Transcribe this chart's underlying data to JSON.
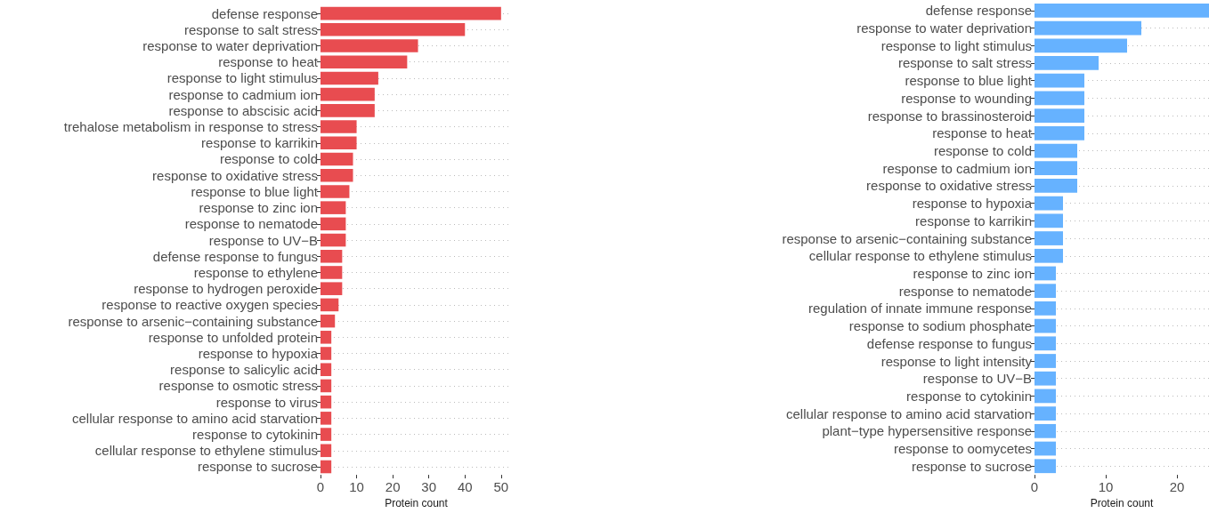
{
  "chart_data": [
    {
      "type": "bar",
      "orientation": "horizontal",
      "xlabel": "Protein count",
      "grid": "y",
      "color": "#e84c50",
      "categories": [
        "defense response",
        "response to salt stress",
        "response to water deprivation",
        "response to heat",
        "response to light stimulus",
        "response to cadmium ion",
        "response to abscisic acid",
        "trehalose metabolism in response to stress",
        "response to karrikin",
        "response to cold",
        "response to oxidative stress",
        "response to blue light",
        "response to zinc ion",
        "response to nematode",
        "response to UV−B",
        "defense response to fungus",
        "response to ethylene",
        "response to hydrogen peroxide",
        "response to reactive oxygen species",
        "response to arsenic−containing substance",
        "response to unfolded protein",
        "response to hypoxia",
        "response to salicylic acid",
        "response to osmotic stress",
        "response to virus",
        "cellular response to amino acid starvation",
        "response to cytokinin",
        "cellular response to ethylene stimulus",
        "response to sucrose"
      ],
      "values": [
        50,
        40,
        27,
        24,
        16,
        15,
        15,
        10,
        10,
        9,
        9,
        8,
        7,
        7,
        7,
        6,
        6,
        6,
        5,
        4,
        3,
        3,
        3,
        3,
        3,
        3,
        3,
        3,
        3
      ],
      "xlim": [
        0,
        53
      ],
      "xticks": [
        0,
        10,
        20,
        30,
        40,
        50
      ]
    },
    {
      "type": "bar",
      "orientation": "horizontal",
      "xlabel": "Protein count",
      "grid": "y",
      "color": "#66b2ff",
      "categories": [
        "defense response",
        "response to water deprivation",
        "response to light stimulus",
        "response to salt stress",
        "response to blue light",
        "response to wounding",
        "response to brassinosteroid",
        "response to heat",
        "response to cold",
        "response to cadmium ion",
        "response to oxidative stress",
        "response to hypoxia",
        "response to karrikin",
        "response to arsenic−containing substance",
        "cellular response to ethylene stimulus",
        "response to zinc ion",
        "response to nematode",
        "regulation of innate immune response",
        "response to sodium phosphate",
        "defense response to fungus",
        "response to light intensity",
        "response to UV−B",
        "response to cytokinin",
        "cellular response to amino acid starvation",
        "plant−type hypersensitive response",
        "response to oomycetes",
        "response to sucrose"
      ],
      "values": [
        24.5,
        15,
        13,
        9,
        7,
        7,
        7,
        7,
        6,
        6,
        6,
        4,
        4,
        4,
        4,
        3,
        3,
        3,
        3,
        3,
        3,
        3,
        3,
        3,
        3,
        3,
        3
      ],
      "xlim": [
        0,
        24.5
      ],
      "xticks": [
        0,
        10,
        20
      ]
    }
  ]
}
